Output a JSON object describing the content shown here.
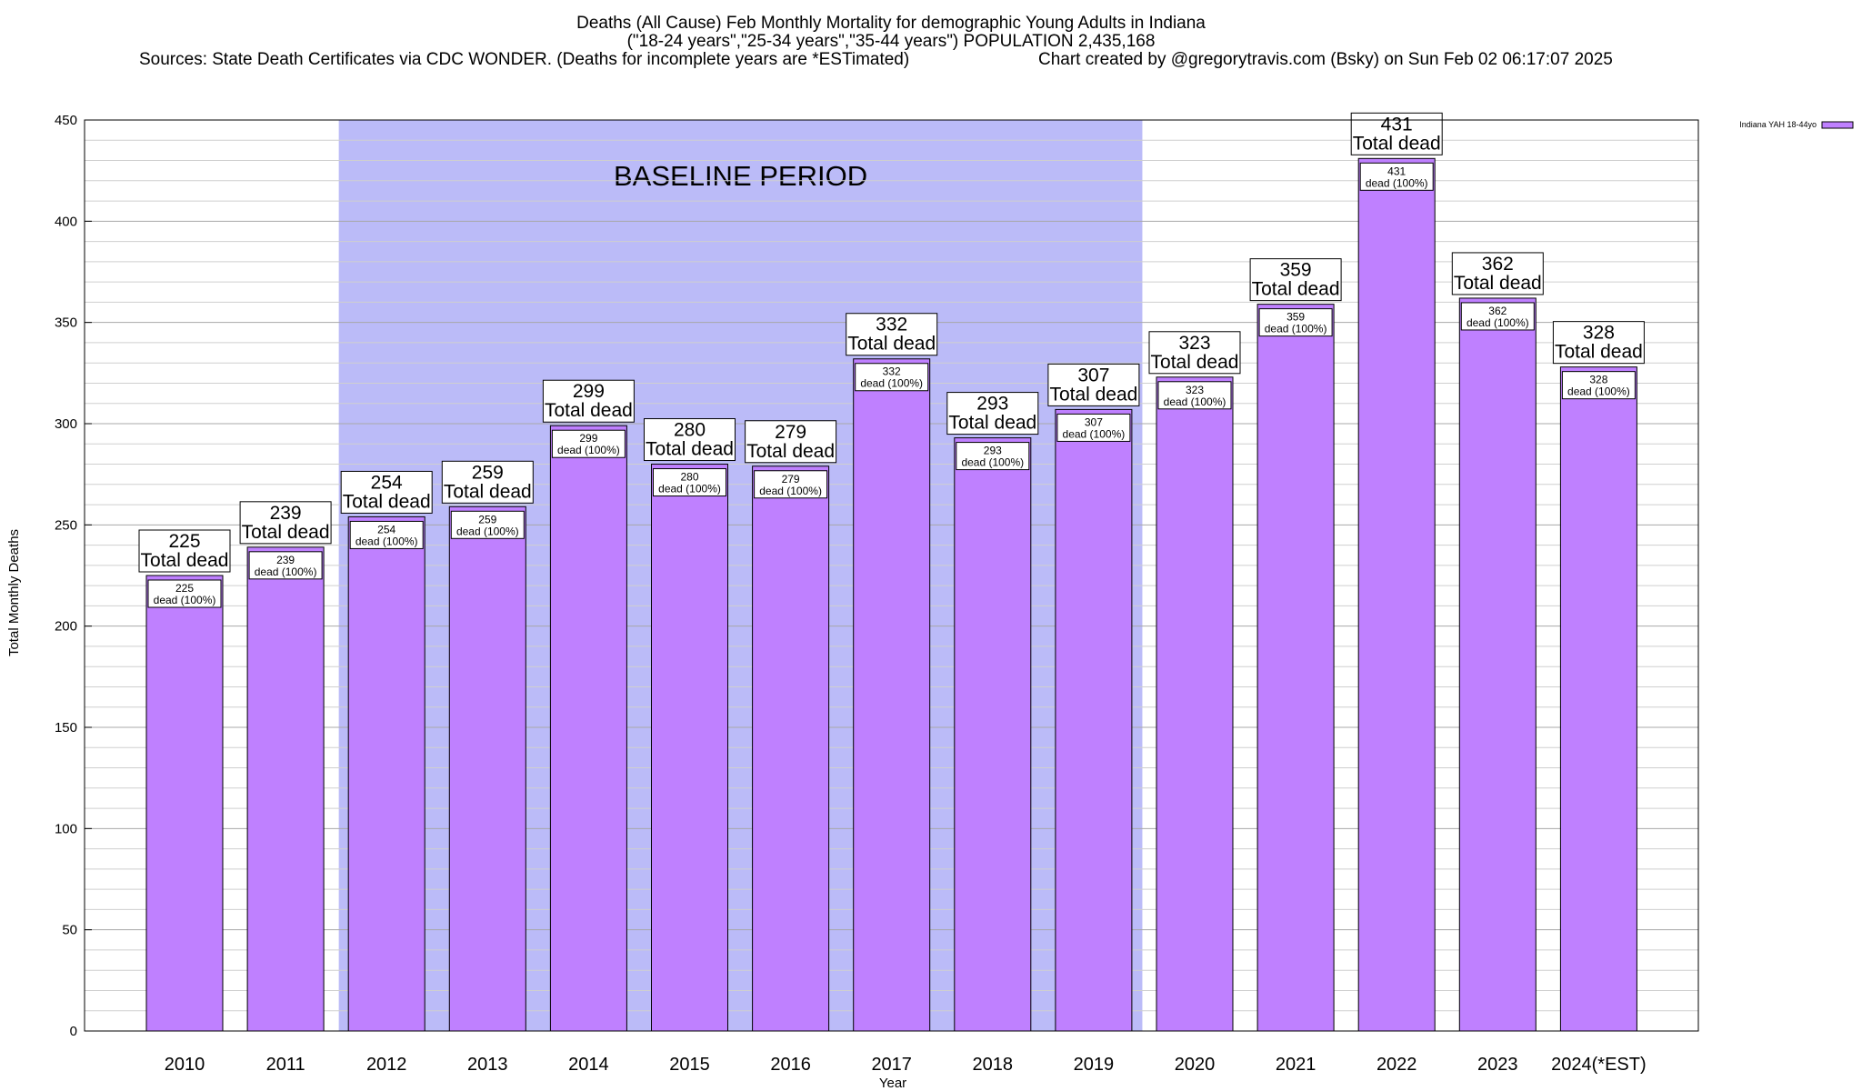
{
  "chart_data": {
    "type": "bar",
    "title": "Deaths (All Cause) Feb Monthly Mortality for demographic Young Adults in Indiana",
    "subtitle": "(\"18-24 years\",\"25-34 years\",\"35-44 years\") POPULATION 2,435,168",
    "sources": "Sources: State Death Certificates via CDC WONDER. (Deaths for incomplete years are *ESTimated)",
    "credit": "Chart created by @gregorytravis.com (Bsky) on Sun Feb 02 06:17:07 2025",
    "xlabel": "Year",
    "ylabel": "Total Monthly Deaths",
    "ylim": [
      0,
      450
    ],
    "yticks": [
      0,
      50,
      100,
      150,
      200,
      250,
      300,
      350,
      400,
      450
    ],
    "minor_grid_step": 10,
    "grid": true,
    "legend_position": "top-right",
    "bar_color": "#bf80ff",
    "band_color": "#bbbbf8",
    "categories": [
      "2010",
      "2011",
      "2012",
      "2013",
      "2014",
      "2015",
      "2016",
      "2017",
      "2018",
      "2019",
      "2020",
      "2021",
      "2022",
      "2023",
      "2024(*EST)"
    ],
    "series": [
      {
        "name": "Indiana YAH 18-44yo",
        "values": [
          225,
          239,
          254,
          259,
          299,
          280,
          279,
          332,
          293,
          307,
          323,
          359,
          431,
          362,
          328
        ]
      }
    ],
    "total_label_suffix": "Total dead",
    "inner_label_suffix": "dead (100%)",
    "baseline_band": {
      "label": "BASELINE PERIOD",
      "from_category": "2012",
      "to_category": "2019"
    }
  }
}
